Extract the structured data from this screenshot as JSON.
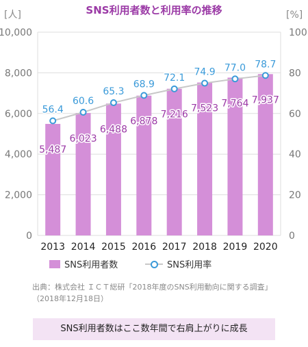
{
  "chart_data": {
    "type": "bar+line",
    "title": "SNS利用者数と利用率の推移",
    "categories": [
      "2013",
      "2014",
      "2015",
      "2016",
      "2017",
      "2018",
      "2019",
      "2020"
    ],
    "series": [
      {
        "name": "SNS利用者数",
        "type": "bar",
        "axis": "left",
        "color": "#d48fd8",
        "label_color": "#9b3aa6",
        "values": [
          5487,
          6023,
          6488,
          6878,
          7216,
          7523,
          7764,
          7937
        ],
        "labels": [
          "5,487",
          "6,023",
          "6,488",
          "6,878",
          "7,216",
          "7,523",
          "7,764",
          "7,937"
        ]
      },
      {
        "name": "SNS利用率",
        "type": "line",
        "axis": "right",
        "color": "#3a9ad9",
        "line_color": "#c8c8c8",
        "values": [
          56.4,
          60.6,
          65.3,
          68.9,
          72.1,
          74.9,
          77.0,
          78.7
        ],
        "labels": [
          "56.4",
          "60.6",
          "65.3",
          "68.9",
          "72.1",
          "74.9",
          "77.0",
          "78.7"
        ]
      }
    ],
    "left_axis": {
      "unit": "[人]",
      "ylim": [
        0,
        10000
      ],
      "ticks": [
        0,
        2000,
        4000,
        6000,
        8000,
        10000
      ],
      "tick_labels": [
        "0",
        "2,000",
        "4,000",
        "6,000",
        "8,000",
        "10,000"
      ]
    },
    "right_axis": {
      "unit": "[%]",
      "ylim": [
        0,
        100
      ],
      "ticks": [
        0,
        20,
        40,
        60,
        80,
        100
      ],
      "tick_labels": [
        "0",
        "20",
        "40",
        "60",
        "80",
        "100"
      ]
    },
    "grid": true,
    "legend_position": "bottom"
  },
  "source": "出典：株式会社 ＩＣＴ総研「2018年度のSNS利用動向に関する調査」（2018年12月18日）",
  "summary": "SNS利用者数はここ数年間で右肩上がりに成長"
}
